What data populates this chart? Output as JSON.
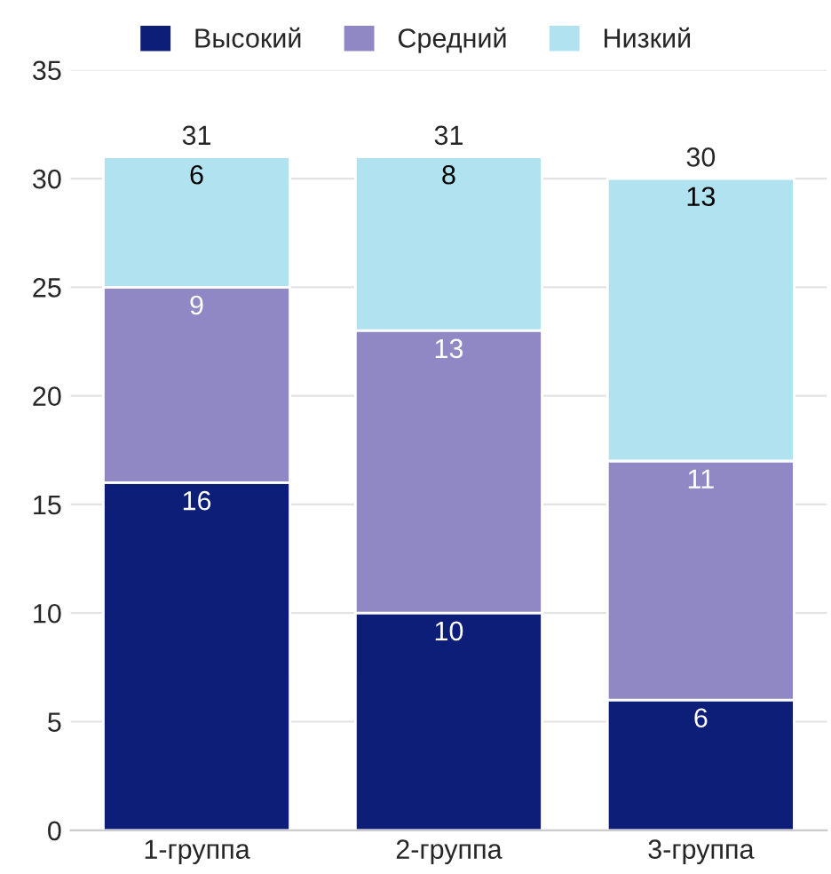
{
  "chart_data": {
    "type": "bar",
    "stacked": true,
    "categories": [
      "1-группа",
      "2-группа",
      "3-группа"
    ],
    "series": [
      {
        "name": "Высокий",
        "color": "#0c1e78",
        "values": [
          16,
          10,
          6
        ]
      },
      {
        "name": "Средний",
        "color": "#8f88c4",
        "values": [
          9,
          13,
          11
        ]
      },
      {
        "name": "Низкий",
        "color": "#b0e2f0",
        "values": [
          6,
          8,
          13
        ]
      }
    ],
    "totals": [
      "31",
      "31",
      "30"
    ],
    "data_labels": true,
    "ylim": [
      0,
      35
    ],
    "yticks": [
      0,
      5,
      10,
      15,
      20,
      25,
      30,
      35
    ],
    "grid": "y",
    "legend": "top"
  }
}
